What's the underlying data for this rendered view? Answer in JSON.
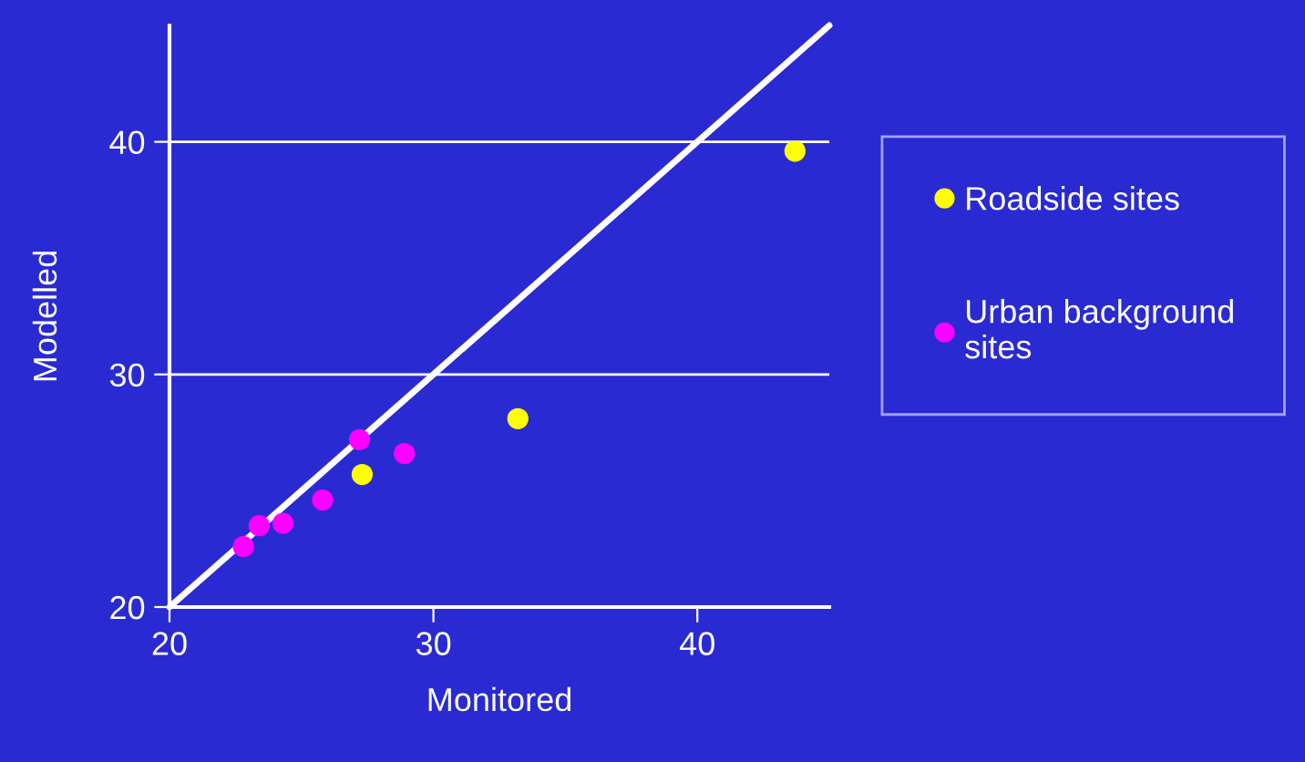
{
  "chart_data": {
    "type": "scatter",
    "xlabel": "Monitored",
    "ylabel": "Modelled",
    "xlim": [
      20,
      45
    ],
    "ylim": [
      20,
      45
    ],
    "xticks": [
      20,
      30,
      40
    ],
    "yticks": [
      20,
      30,
      40
    ],
    "grid": "y",
    "legend": "right",
    "series": [
      {
        "name": "Roadside sites",
        "color": "#ffff00",
        "marker": "circle",
        "x": [
          43.7,
          33.2,
          27.3
        ],
        "values": [
          39.6,
          28.1,
          25.7
        ]
      },
      {
        "name": "Urban background sites",
        "color": "#ff00ff",
        "marker": "circle",
        "x": [
          27.2,
          28.9,
          25.8,
          24.3,
          23.4,
          22.8
        ],
        "values": [
          27.2,
          26.6,
          24.6,
          23.6,
          23.5,
          22.6
        ]
      },
      {
        "type": "line",
        "color": "#ffffff",
        "x": [
          20,
          45
        ],
        "values": [
          20,
          45
        ]
      }
    ]
  }
}
